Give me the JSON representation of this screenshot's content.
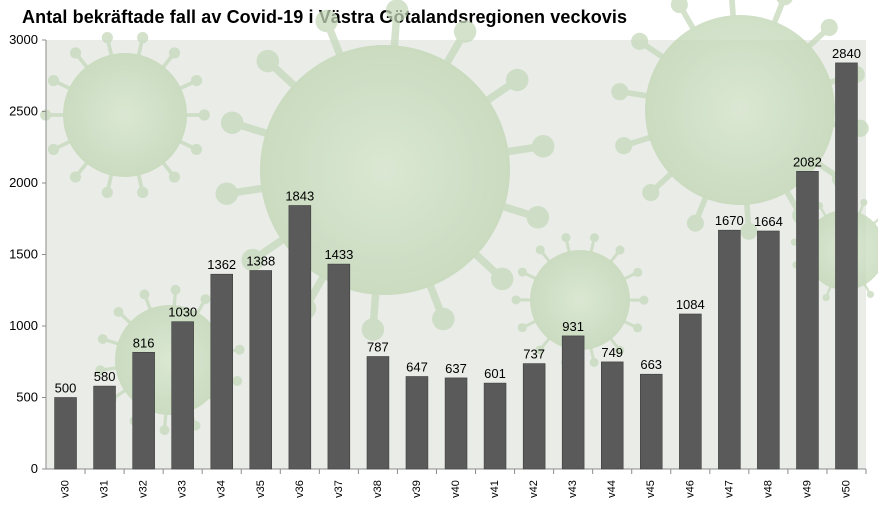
{
  "chart_data": {
    "type": "bar",
    "title": "Antal bekräftade fall av Covid-19 i Västra Götalandsregionen veckovis",
    "xlabel": "",
    "ylabel": "",
    "categories": [
      "v30",
      "v31",
      "v32",
      "v33",
      "v34",
      "v35",
      "v36",
      "v37",
      "v38",
      "v39",
      "v40",
      "v41",
      "v42",
      "v43",
      "v44",
      "v45",
      "v46",
      "v47",
      "v48",
      "v49",
      "v50"
    ],
    "values": [
      500,
      580,
      816,
      1030,
      1362,
      1388,
      1843,
      1433,
      787,
      647,
      637,
      601,
      737,
      931,
      749,
      663,
      1084,
      1670,
      1664,
      2082,
      2840
    ],
    "ylim": [
      0,
      3000
    ],
    "yticks": [
      0,
      500,
      1000,
      1500,
      2000,
      2500,
      3000
    ],
    "grid": false,
    "legend": "none",
    "data_labels": true,
    "colors": {
      "bar": "#5a5a5a",
      "bar_edge": "#3e3e3e",
      "plot_bg": "#e9ece7",
      "virus": "#c5d9bb"
    }
  }
}
